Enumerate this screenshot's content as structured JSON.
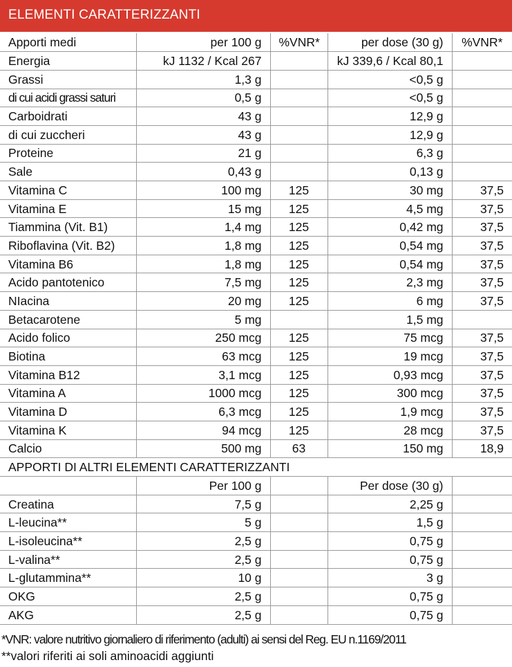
{
  "title": "ELEMENTI CARATTERIZZANTI",
  "head": [
    "Apporti medi",
    "per 100 g",
    "%VNR*",
    "per dose (30 g)",
    "%VNR*"
  ],
  "rows": [
    [
      "Energia",
      "kJ 1132 / Kcal 267",
      "",
      "kJ 339,6 / Kcal 80,1",
      ""
    ],
    [
      "Grassi",
      "1,3 g",
      "",
      "<0,5 g",
      ""
    ],
    [
      "di cui acidi grassi saturi",
      "0,5 g",
      "",
      "<0,5 g",
      ""
    ],
    [
      "Carboidrati",
      "43 g",
      "",
      "12,9 g",
      ""
    ],
    [
      "di cui zuccheri",
      "43 g",
      "",
      "12,9 g",
      ""
    ],
    [
      "Proteine",
      "21 g",
      "",
      "6,3 g",
      ""
    ],
    [
      "Sale",
      "0,43 g",
      "",
      "0,13 g",
      ""
    ],
    [
      "Vitamina C",
      "100 mg",
      "125",
      "30 mg",
      "37,5"
    ],
    [
      "Vitamina E",
      "15 mg",
      "125",
      "4,5 mg",
      "37,5"
    ],
    [
      "Tiammina (Vit. B1)",
      "1,4 mg",
      "125",
      "0,42 mg",
      "37,5"
    ],
    [
      "Riboflavina (Vit. B2)",
      "1,8 mg",
      "125",
      "0,54 mg",
      "37,5"
    ],
    [
      "Vitamina B6",
      "1,8 mg",
      "125",
      "0,54 mg",
      "37,5"
    ],
    [
      "Acido pantotenico",
      "7,5 mg",
      "125",
      "2,3 mg",
      "37,5"
    ],
    [
      "NIacina",
      "20 mg",
      "125",
      "6 mg",
      "37,5"
    ],
    [
      "Betacarotene",
      "5 mg",
      "",
      "1,5 mg",
      ""
    ],
    [
      "Acido folico",
      "250 mcg",
      "125",
      "75 mcg",
      "37,5"
    ],
    [
      "Biotina",
      "63 mcg",
      "125",
      "19 mcg",
      "37,5"
    ],
    [
      "Vitamina B12",
      "3,1 mcg",
      "125",
      "0,93 mcg",
      "37,5"
    ],
    [
      "Vitamina A",
      "1000 mcg",
      "125",
      "300 mcg",
      "37,5"
    ],
    [
      "Vitamina D",
      "6,3 mcg",
      "125",
      "1,9 mcg",
      "37,5"
    ],
    [
      "Vitamina K",
      "94 mcg",
      "125",
      "28 mcg",
      "37,5"
    ],
    [
      "Calcio",
      "500 mg",
      "63",
      "150 mg",
      "18,9"
    ]
  ],
  "section2_title": "APPORTI DI ALTRI ELEMENTI CARATTERIZZANTI",
  "head2": [
    "",
    "Per 100 g",
    "",
    "Per dose (30 g)",
    ""
  ],
  "rows2": [
    [
      "Creatina",
      "7,5 g",
      "",
      "2,25 g",
      ""
    ],
    [
      "L-leucina**",
      "5 g",
      "",
      "1,5 g",
      ""
    ],
    [
      "L-isoleucina**",
      "2,5 g",
      "",
      "0,75 g",
      ""
    ],
    [
      "L-valina**",
      "2,5 g",
      "",
      "0,75 g",
      ""
    ],
    [
      "L-glutammina**",
      "10 g",
      "",
      "3 g",
      ""
    ],
    [
      "OKG",
      "2,5 g",
      "",
      "0,75 g",
      ""
    ],
    [
      "AKG",
      "2,5 g",
      "",
      "0,75 g",
      ""
    ]
  ],
  "footnote1": "*VNR: valore nutritivo giornaliero di riferimento (adulti) ai sensi del Reg. EU n.1169/2011",
  "footnote2": "**valori riferiti ai soli aminoacidi aggiunti"
}
